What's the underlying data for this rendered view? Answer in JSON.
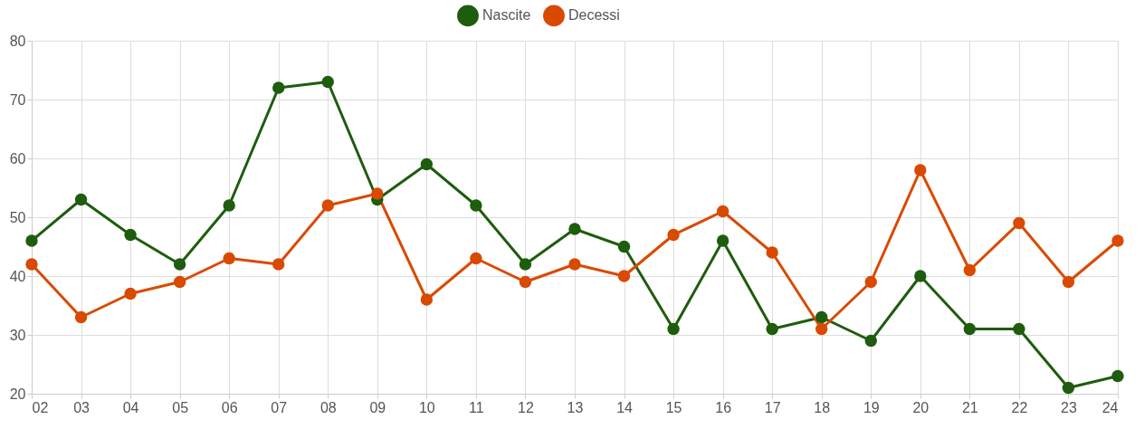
{
  "chart_data": {
    "type": "line",
    "categories": [
      "02",
      "03",
      "04",
      "05",
      "06",
      "07",
      "08",
      "09",
      "10",
      "11",
      "12",
      "13",
      "14",
      "15",
      "16",
      "17",
      "18",
      "19",
      "20",
      "21",
      "22",
      "23",
      "24"
    ],
    "series": [
      {
        "name": "Nascite",
        "color": "#1e5c0e",
        "values": [
          46,
          53,
          47,
          42,
          52,
          72,
          73,
          53,
          59,
          52,
          42,
          48,
          45,
          31,
          46,
          31,
          33,
          29,
          40,
          31,
          31,
          21,
          23
        ]
      },
      {
        "name": "Decessi",
        "color": "#d94a00",
        "values": [
          42,
          33,
          37,
          39,
          43,
          42,
          52,
          54,
          36,
          43,
          39,
          42,
          40,
          47,
          51,
          44,
          31,
          39,
          58,
          41,
          49,
          39,
          46
        ]
      }
    ],
    "ylim": [
      20,
      80
    ],
    "yticks": [
      20,
      30,
      40,
      50,
      60,
      70,
      80
    ],
    "grid": true,
    "legend": "top",
    "marker": "circle",
    "line_style": "solid"
  }
}
